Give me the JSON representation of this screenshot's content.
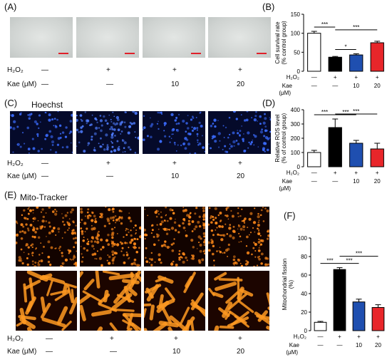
{
  "panels": {
    "A": {
      "label": "(A)"
    },
    "B": {
      "label": "(B)"
    },
    "C": {
      "label": "(C)",
      "title": "Hoechst"
    },
    "D": {
      "label": "(D)"
    },
    "E": {
      "label": "(E)",
      "title": "Mito-Tracker"
    },
    "F": {
      "label": "(F)"
    }
  },
  "conditions": {
    "h2o2_label": "H₂O₂",
    "kae_label": "Kae (μM)",
    "h2o2_values": [
      "—",
      "+",
      "+",
      "+"
    ],
    "kae_values": [
      "—",
      "—",
      "10",
      "20"
    ]
  },
  "chart_conditions": {
    "h2o2_label": "H₂O₂",
    "kae_label": "Kae",
    "kae_unit": "(μM)",
    "h2o2_values": [
      "—",
      "+",
      "+",
      "+"
    ],
    "kae_values": [
      "—",
      "—",
      "10",
      "20"
    ]
  },
  "colors": {
    "control": "#ffffff",
    "h2o2": "#000000",
    "kae10": "#1f4fb0",
    "kae20": "#e8262a"
  },
  "chart_data": [
    {
      "id": "B",
      "type": "bar",
      "categories": [
        "control",
        "H2O2",
        "Kae 10",
        "Kae 20"
      ],
      "values": [
        100,
        37,
        43,
        75
      ],
      "errors": [
        5,
        2,
        3,
        4
      ],
      "ylabel": "Cell survival rate (% control group)",
      "ylim": [
        0,
        150
      ],
      "yticks": [
        0,
        50,
        100,
        150
      ],
      "significance": [
        {
          "from": 0,
          "to": 1,
          "label": "***"
        },
        {
          "from": 1,
          "to": 2,
          "label": "*"
        },
        {
          "from": 1,
          "to": 3,
          "label": "***"
        }
      ]
    },
    {
      "id": "D",
      "type": "bar",
      "categories": [
        "control",
        "H2O2",
        "Kae 10",
        "Kae 20"
      ],
      "values": [
        100,
        275,
        165,
        125
      ],
      "errors": [
        15,
        60,
        20,
        40
      ],
      "ylabel": "Relative ROS level (% of control group)",
      "ylim": [
        0,
        400
      ],
      "yticks": [
        0,
        100,
        200,
        300,
        400
      ],
      "significance": [
        {
          "from": 0,
          "to": 1,
          "label": "***"
        },
        {
          "from": 1,
          "to": 2,
          "label": "***"
        },
        {
          "from": 1,
          "to": 3,
          "label": "***"
        }
      ]
    },
    {
      "id": "F",
      "type": "bar",
      "categories": [
        "control",
        "H2O2",
        "Kae 10",
        "Kae 20"
      ],
      "values": [
        9,
        66,
        31,
        25
      ],
      "errors": [
        1,
        2,
        3,
        3
      ],
      "ylabel": "Mitochondrial fission (%)",
      "ylim": [
        0,
        100
      ],
      "yticks": [
        0,
        20,
        40,
        60,
        80,
        100
      ],
      "significance": [
        {
          "from": 0,
          "to": 1,
          "label": "***"
        },
        {
          "from": 1,
          "to": 2,
          "label": "***"
        },
        {
          "from": 1,
          "to": 3,
          "label": "***"
        }
      ]
    }
  ]
}
